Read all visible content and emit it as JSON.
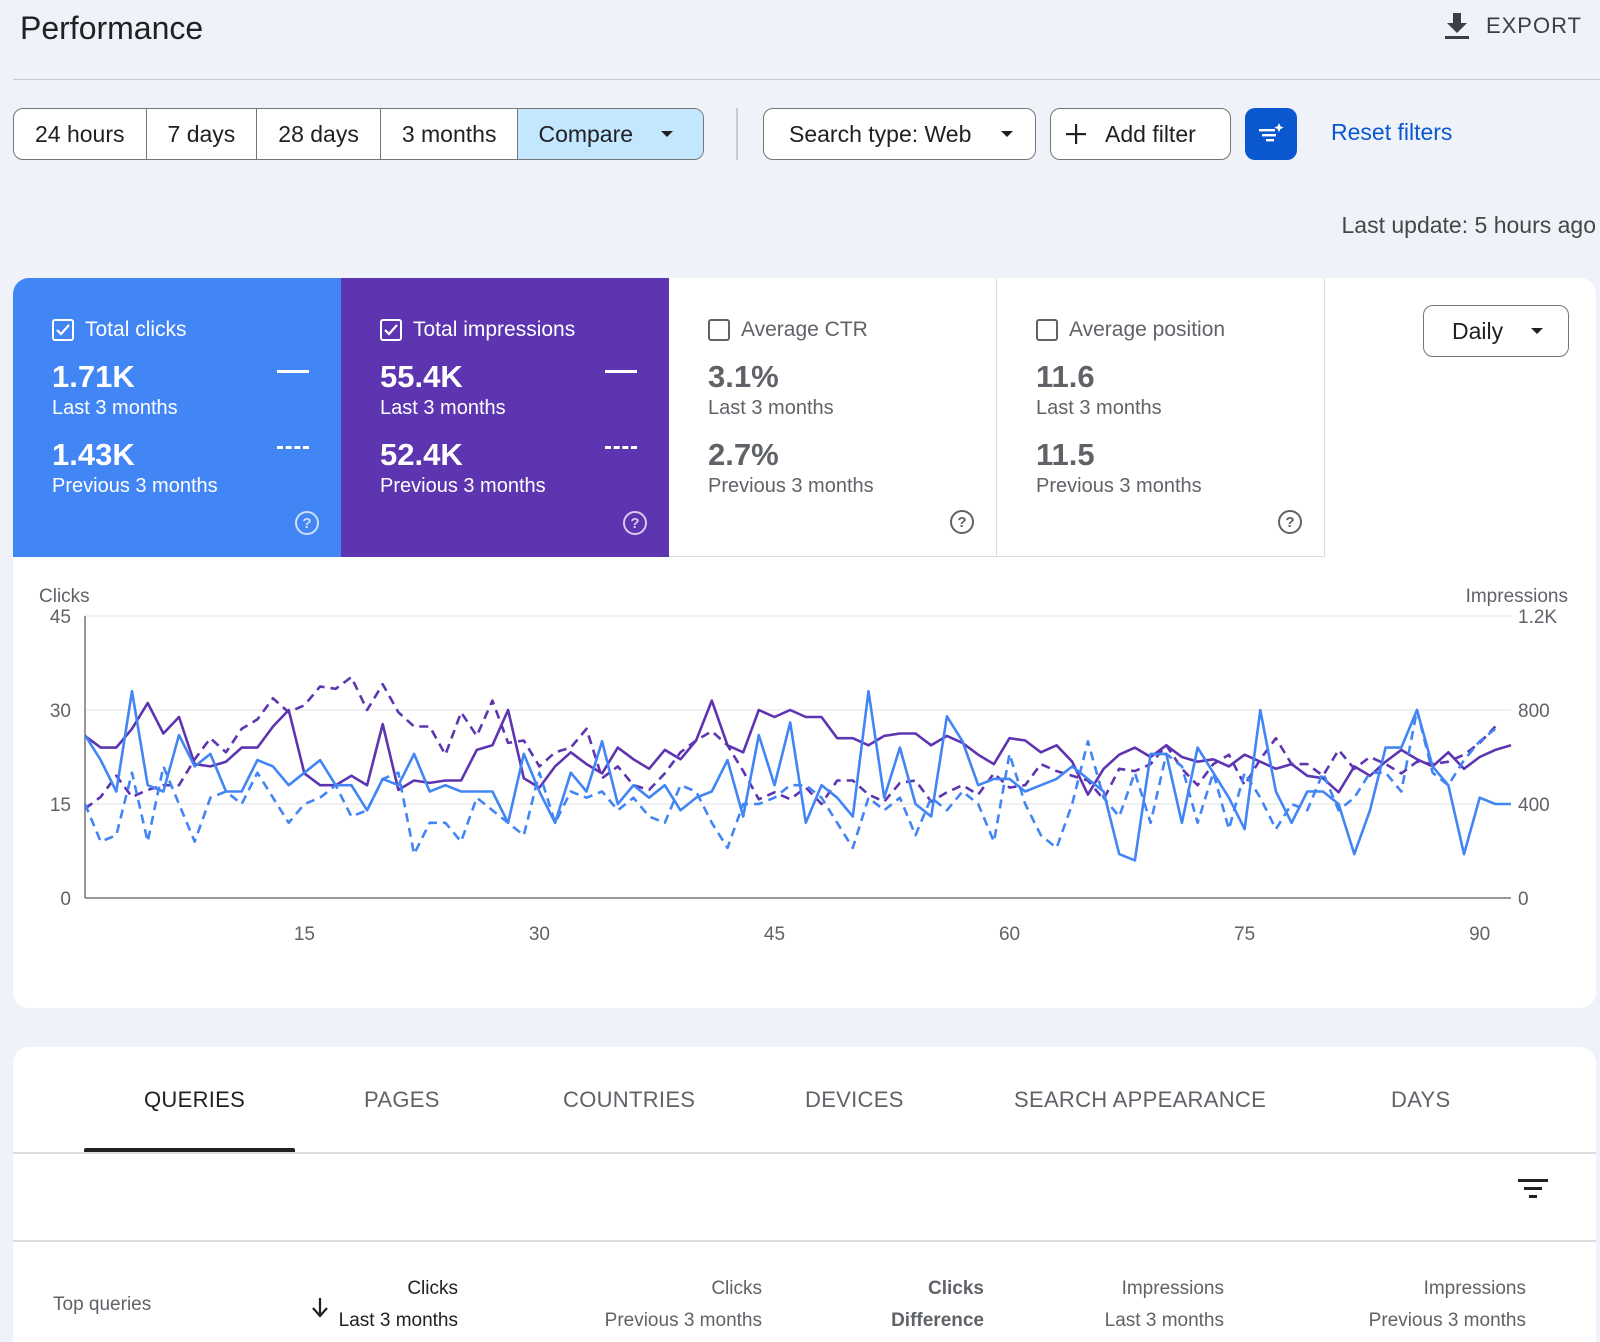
{
  "header": {
    "title": "Performance",
    "export_label": "EXPORT"
  },
  "toolbar": {
    "ranges": [
      "24 hours",
      "7 days",
      "28 days",
      "3 months"
    ],
    "compare_label": "Compare",
    "search_type_label": "Search type: Web",
    "add_filter_label": "Add filter",
    "reset_label": "Reset filters",
    "last_update": "Last update: 5 hours ago"
  },
  "metrics": [
    {
      "label": "Total clicks",
      "checked": true,
      "current": "1.71K",
      "current_label": "Last 3 months",
      "previous": "1.43K",
      "previous_label": "Previous 3 months",
      "color": "#4285f4"
    },
    {
      "label": "Total impressions",
      "checked": true,
      "current": "55.4K",
      "current_label": "Last 3 months",
      "previous": "52.4K",
      "previous_label": "Previous 3 months",
      "color": "#5e35b1"
    },
    {
      "label": "Average CTR",
      "checked": false,
      "current": "3.1%",
      "current_label": "Last 3 months",
      "previous": "2.7%",
      "previous_label": "Previous 3 months"
    },
    {
      "label": "Average position",
      "checked": false,
      "current": "11.6",
      "current_label": "Last 3 months",
      "previous": "11.5",
      "previous_label": "Previous 3 months"
    }
  ],
  "granularity": "Daily",
  "chart_data": {
    "type": "line",
    "ylabel_left": "Clicks",
    "ylabel_right": "Impressions",
    "y_left_ticks": [
      "0",
      "15",
      "30",
      "45"
    ],
    "y_right_ticks": [
      "0",
      "400",
      "800",
      "1.2K"
    ],
    "x_ticks": [
      "15",
      "30",
      "45",
      "60",
      "75",
      "90"
    ],
    "xlim": [
      1,
      92
    ],
    "ylim_left": [
      0,
      45
    ],
    "ylim_right": [
      0,
      1200
    ],
    "grid": true,
    "series": [
      {
        "axis": "right",
        "style": "solid",
        "color": "#5e35b1",
        "values": [
          690,
          640,
          640,
          720,
          830,
          700,
          770,
          570,
          560,
          580,
          640,
          640,
          730,
          800,
          530,
          480,
          480,
          520,
          480,
          740,
          460,
          500,
          490,
          500,
          500,
          630,
          650,
          800,
          510,
          470,
          560,
          620,
          570,
          530,
          640,
          590,
          550,
          630,
          590,
          670,
          840,
          650,
          620,
          800,
          770,
          800,
          770,
          770,
          680,
          680,
          650,
          690,
          700,
          700,
          650,
          690,
          660,
          610,
          570,
          680,
          670,
          620,
          650,
          580,
          440,
          550,
          610,
          640,
          600,
          650,
          600,
          580,
          590,
          560,
          610,
          580,
          550,
          570,
          520,
          510,
          450,
          560,
          520,
          580,
          630,
          590,
          560,
          620,
          550,
          600,
          630,
          650
        ]
      },
      {
        "axis": "right",
        "style": "dashed",
        "color": "#5e35b1",
        "values": [
          380,
          430,
          520,
          430,
          460,
          480,
          480,
          590,
          680,
          620,
          720,
          760,
          850,
          790,
          820,
          900,
          890,
          940,
          800,
          910,
          790,
          730,
          730,
          610,
          790,
          690,
          840,
          660,
          670,
          560,
          620,
          640,
          720,
          510,
          560,
          480,
          460,
          530,
          620,
          670,
          710,
          650,
          540,
          420,
          450,
          420,
          470,
          400,
          500,
          500,
          440,
          410,
          490,
          500,
          410,
          450,
          480,
          440,
          530,
          470,
          480,
          570,
          540,
          520,
          500,
          420,
          550,
          540,
          570,
          650,
          550,
          480,
          570,
          610,
          480,
          590,
          680,
          570,
          570,
          520,
          630,
          550,
          600,
          570,
          530,
          580,
          570,
          580,
          610,
          660,
          730
        ]
      },
      {
        "axis": "left",
        "style": "solid",
        "color": "#4285f4",
        "values": [
          26,
          22,
          17,
          33,
          18,
          17,
          26,
          21,
          23,
          17,
          17,
          22,
          21,
          18,
          20,
          22,
          18,
          18,
          14,
          19,
          18,
          23,
          17,
          18,
          17,
          17,
          17,
          12,
          23,
          17,
          12,
          20,
          17,
          25,
          15,
          18,
          16,
          18,
          14,
          16,
          17,
          22,
          13,
          26,
          18,
          28,
          12,
          18,
          16,
          13,
          33,
          16,
          24,
          15,
          13,
          29,
          25,
          18,
          19,
          19,
          17,
          18,
          19,
          21,
          19,
          17,
          7,
          6,
          23,
          23,
          12,
          24,
          20,
          16,
          11,
          30,
          17,
          12,
          17,
          17,
          15,
          7,
          14,
          24,
          24,
          30,
          21,
          18,
          7,
          16,
          15,
          15
        ]
      },
      {
        "axis": "left",
        "style": "dashed",
        "color": "#4285f4",
        "values": [
          15,
          9,
          10,
          20,
          9,
          21,
          15,
          9,
          16,
          17,
          15,
          20,
          16,
          12,
          15,
          16,
          18,
          13,
          14,
          19,
          20,
          7,
          12,
          12,
          9,
          16,
          14,
          12,
          10,
          20,
          12,
          17,
          16,
          17,
          14,
          16,
          13,
          12,
          18,
          17,
          12,
          8,
          15,
          15,
          16,
          18,
          18,
          16,
          12,
          8,
          16,
          14,
          16,
          10,
          16,
          14,
          17,
          15,
          9,
          23,
          15,
          10,
          8,
          15,
          25,
          16,
          13,
          20,
          12,
          23,
          21,
          12,
          20,
          11,
          20,
          16,
          11,
          15,
          14,
          20,
          14,
          16,
          20,
          20,
          17,
          30,
          20,
          18,
          22,
          25,
          27
        ]
      }
    ]
  },
  "tabs": [
    "QUERIES",
    "PAGES",
    "COUNTRIES",
    "DEVICES",
    "SEARCH APPEARANCE",
    "DAYS"
  ],
  "table": {
    "row_header": "Top queries",
    "columns": [
      {
        "line1": "Clicks",
        "line2": "Last 3 months"
      },
      {
        "line1": "Clicks",
        "line2": "Previous 3 months"
      },
      {
        "line1": "Clicks",
        "line2": "Difference"
      },
      {
        "line1": "Impressions",
        "line2": "Last 3 months"
      },
      {
        "line1": "Impressions",
        "line2": "Previous 3 months"
      }
    ]
  }
}
